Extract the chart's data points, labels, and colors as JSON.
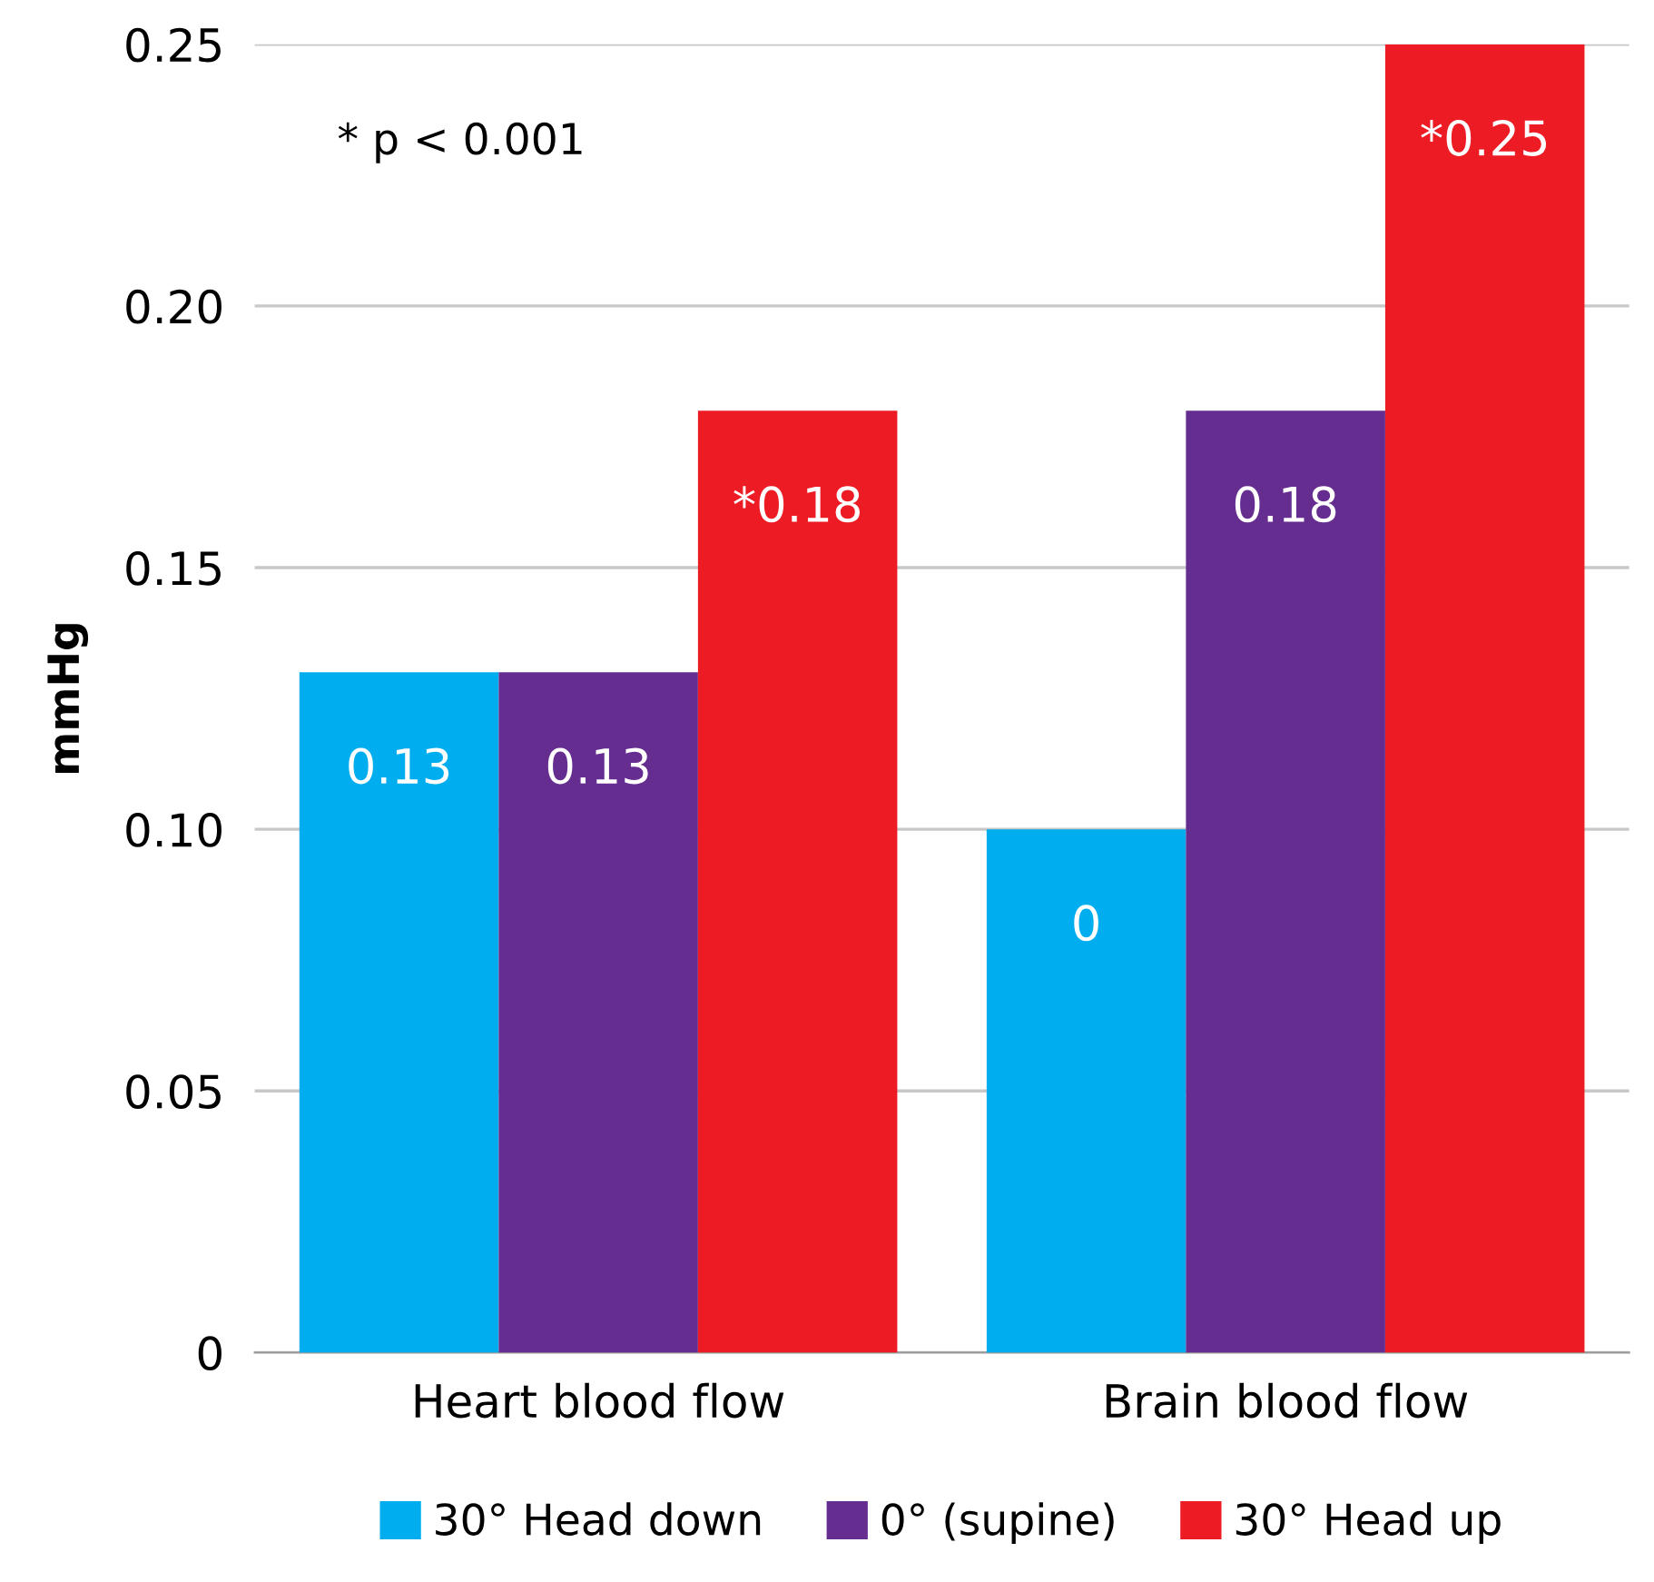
{
  "chart_data": {
    "type": "bar",
    "ylabel": "mmHg",
    "categories": [
      "Heart blood flow",
      "Brain blood flow"
    ],
    "series": [
      {
        "name": "30° Head down",
        "color": "#00aeef",
        "values": [
          0.13,
          0.1
        ],
        "value_labels": [
          "0.13",
          "0"
        ]
      },
      {
        "name": "0° (supine)",
        "color": "#662d91",
        "values": [
          0.13,
          0.18
        ],
        "value_labels": [
          "0.13",
          "0.18"
        ]
      },
      {
        "name": "30° Head up",
        "color": "#ed1c24",
        "values": [
          0.18,
          0.25
        ],
        "value_labels": [
          "*0.18",
          "*0.25"
        ]
      }
    ],
    "ylim": [
      0,
      0.25
    ],
    "yticks": [
      {
        "value": 0,
        "label": "0"
      },
      {
        "value": 0.05,
        "label": "0.05"
      },
      {
        "value": 0.1,
        "label": "0.10"
      },
      {
        "value": 0.15,
        "label": "0.15"
      },
      {
        "value": 0.2,
        "label": "0.20"
      },
      {
        "value": 0.25,
        "label": "0.25"
      }
    ],
    "grid": "y",
    "legend": "bottom",
    "annotations": [
      "* p < 0.001"
    ]
  }
}
